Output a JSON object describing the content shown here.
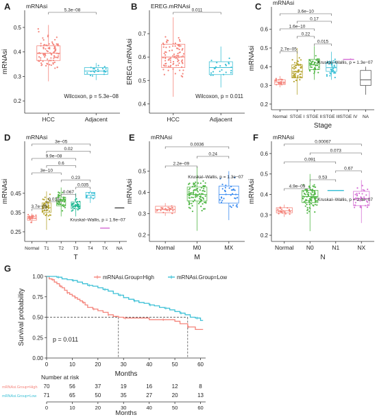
{
  "panel_letters": [
    "A",
    "B",
    "C",
    "D",
    "E",
    "F",
    "G"
  ],
  "chart_data": [
    {
      "panel": "A",
      "type": "box",
      "title": "mRNAsi",
      "ylabel": "mRNAsi",
      "categories": [
        "HCC",
        "Adjacent"
      ],
      "colors": [
        "#f4837a",
        "#3cc0d6"
      ],
      "ylim": [
        0.15,
        0.57
      ],
      "yticks": [
        "0.2",
        "0.3",
        "0.4",
        "0.5"
      ],
      "ytick_values": [
        0.2,
        0.3,
        0.4,
        0.5
      ],
      "boxes": [
        {
          "q1": 0.365,
          "median": 0.395,
          "q3": 0.425,
          "lo": 0.28,
          "hi": 0.51,
          "n": 90,
          "spread": 0.07
        },
        {
          "q1": 0.308,
          "median": 0.322,
          "q3": 0.336,
          "lo": 0.285,
          "hi": 0.355,
          "n": 22,
          "spread": 0.02
        }
      ],
      "comparisons": [
        {
          "from": 0,
          "to": 1,
          "label": "5.3e−08"
        }
      ],
      "annotation": "Wilcoxon, p = 5.3e−08"
    },
    {
      "panel": "B",
      "type": "box",
      "title": "EREG.mRNAsi",
      "ylabel": "EREG.mRNAsi",
      "categories": [
        "HCC",
        "Adjacent"
      ],
      "colors": [
        "#f4837a",
        "#3cc0d6"
      ],
      "ylim": [
        0.36,
        0.8
      ],
      "yticks": [
        "0.4",
        "0.5",
        "0.6",
        "0.7"
      ],
      "ytick_values": [
        0.4,
        0.5,
        0.6,
        0.7
      ],
      "boxes": [
        {
          "q1": 0.555,
          "median": 0.6,
          "q3": 0.655,
          "lo": 0.43,
          "hi": 0.77,
          "n": 90,
          "spread": 0.08
        },
        {
          "q1": 0.525,
          "median": 0.555,
          "q3": 0.58,
          "lo": 0.47,
          "hi": 0.645,
          "n": 22,
          "spread": 0.04
        }
      ],
      "comparisons": [
        {
          "from": 0,
          "to": 1,
          "label": "0.011"
        }
      ],
      "annotation": "Wilcoxon, p = 0.011"
    },
    {
      "panel": "C",
      "type": "box",
      "title": "mRNAsi",
      "ylabel": "mRNAsi",
      "xlabel": "Stage",
      "categories": [
        "Normal",
        "STGE I",
        "STGE II",
        "STGE III",
        "STGE IV",
        "NA"
      ],
      "colors": [
        "#f4837a",
        "#b6a532",
        "#53b748",
        "#3cc0d6",
        "#d673d6",
        "#555555"
      ],
      "ylim": [
        0.17,
        0.72
      ],
      "yticks": [
        "0.2",
        "0.3",
        "0.4",
        "0.5",
        "0.6"
      ],
      "ytick_values": [
        0.2,
        0.3,
        0.4,
        0.5,
        0.6
      ],
      "boxes": [
        {
          "q1": 0.305,
          "median": 0.318,
          "q3": 0.33,
          "lo": 0.29,
          "hi": 0.35,
          "n": 22,
          "spread": 0.02
        },
        {
          "q1": 0.34,
          "median": 0.375,
          "q3": 0.41,
          "lo": 0.25,
          "hi": 0.5,
          "n": 55,
          "spread": 0.06
        },
        {
          "q1": 0.385,
          "median": 0.41,
          "q3": 0.44,
          "lo": 0.33,
          "hi": 0.51,
          "n": 45,
          "spread": 0.04
        },
        {
          "q1": 0.375,
          "median": 0.395,
          "q3": 0.42,
          "lo": 0.33,
          "hi": 0.48,
          "n": 35,
          "spread": 0.04
        },
        {
          "q1": 0.44,
          "median": 0.44,
          "q3": 0.44,
          "lo": 0.44,
          "hi": 0.44,
          "n": 1,
          "spread": 0.0
        },
        {
          "q1": 0.3,
          "median": 0.33,
          "q3": 0.38,
          "lo": 0.25,
          "hi": 0.4,
          "n": 0,
          "spread": 0.0
        }
      ],
      "comparisons": [
        {
          "from": 0,
          "to": 3,
          "label": "3.6e−10"
        },
        {
          "from": 1,
          "to": 3,
          "label": "0.17"
        },
        {
          "from": 0,
          "to": 2,
          "label": "1.6e−10"
        },
        {
          "from": 1,
          "to": 2,
          "label": "0.22"
        },
        {
          "from": 2,
          "to": 3,
          "label": "0.015"
        },
        {
          "from": 0,
          "to": 1,
          "label": "2.7e−05"
        }
      ],
      "annotation": "Kruskal–Wallis, p = 1.3e−07"
    },
    {
      "panel": "D",
      "type": "box",
      "title": "mRNAsi",
      "ylabel": "mRNAsi",
      "xlabel": "T",
      "categories": [
        "Normal",
        "T1",
        "T2",
        "T3",
        "T4",
        "TX",
        "NA"
      ],
      "colors": [
        "#f4837a",
        "#b6a532",
        "#53b748",
        "#23b994",
        "#3cc0d6",
        "#d673d6",
        "#555555"
      ],
      "ylim": [
        0.2,
        0.72
      ],
      "yticks": [
        "0.25",
        "0.35",
        "0.45"
      ],
      "ytick_values": [
        0.25,
        0.35,
        0.45
      ],
      "boxes": [
        {
          "q1": 0.31,
          "median": 0.32,
          "q3": 0.33,
          "lo": 0.295,
          "hi": 0.345,
          "n": 22,
          "spread": 0.015
        },
        {
          "q1": 0.35,
          "median": 0.375,
          "q3": 0.4,
          "lo": 0.26,
          "hi": 0.46,
          "n": 50,
          "spread": 0.05
        },
        {
          "q1": 0.385,
          "median": 0.41,
          "q3": 0.43,
          "lo": 0.33,
          "hi": 0.48,
          "n": 40,
          "spread": 0.04
        },
        {
          "q1": 0.37,
          "median": 0.385,
          "q3": 0.405,
          "lo": 0.33,
          "hi": 0.45,
          "n": 35,
          "spread": 0.03
        },
        {
          "q1": 0.425,
          "median": 0.44,
          "q3": 0.455,
          "lo": 0.4,
          "hi": 0.465,
          "n": 8,
          "spread": 0.02
        },
        {
          "q1": 0.27,
          "median": 0.27,
          "q3": 0.27,
          "lo": 0.27,
          "hi": 0.27,
          "n": 0,
          "spread": 0.0
        },
        {
          "q1": 0.375,
          "median": 0.375,
          "q3": 0.375,
          "lo": 0.375,
          "hi": 0.375,
          "n": 0,
          "spread": 0.0
        }
      ],
      "comparisons": [
        {
          "from": 0,
          "to": 4,
          "label": "3e−05"
        },
        {
          "from": 1,
          "to": 4,
          "label": "0.02"
        },
        {
          "from": 0,
          "to": 3,
          "label": "9.9e−08"
        },
        {
          "from": 1,
          "to": 3,
          "label": "0.6"
        },
        {
          "from": 0,
          "to": 2,
          "label": "3e−10"
        },
        {
          "from": 2,
          "to": 4,
          "label": "0.23"
        },
        {
          "from": 3,
          "to": 4,
          "label": "0.035"
        },
        {
          "from": 2,
          "to": 3,
          "label": "0.067"
        },
        {
          "from": 1,
          "to": 2,
          "label": "0.018"
        },
        {
          "from": 0,
          "to": 1,
          "label": "3.7e−05"
        }
      ],
      "annotation": "Kruskal–Wallis, p = 1.9e−07"
    },
    {
      "panel": "E",
      "type": "box",
      "title": "mRNAsi",
      "ylabel": "mRNAsi",
      "xlabel": "M",
      "categories": [
        "Normal",
        "M0",
        "MX"
      ],
      "colors": [
        "#f4837a",
        "#53b748",
        "#3c8cf0"
      ],
      "ylim": [
        0.17,
        0.64
      ],
      "yticks": [
        "0.2",
        "0.3",
        "0.4",
        "0.5"
      ],
      "ytick_values": [
        0.2,
        0.3,
        0.4,
        0.5
      ],
      "boxes": [
        {
          "q1": 0.305,
          "median": 0.32,
          "q3": 0.335,
          "lo": 0.29,
          "hi": 0.35,
          "n": 22,
          "spread": 0.02
        },
        {
          "q1": 0.36,
          "median": 0.39,
          "q3": 0.425,
          "lo": 0.22,
          "hi": 0.52,
          "n": 90,
          "spread": 0.06
        },
        {
          "q1": 0.35,
          "median": 0.39,
          "q3": 0.43,
          "lo": 0.27,
          "hi": 0.5,
          "n": 35,
          "spread": 0.06
        }
      ],
      "comparisons": [
        {
          "from": 0,
          "to": 2,
          "label": "0.0036"
        },
        {
          "from": 1,
          "to": 2,
          "label": "0.24"
        },
        {
          "from": 0,
          "to": 1,
          "label": "2.2e−09"
        }
      ],
      "annotation": "Kruskal–Wallis, p = 1.3e−07"
    },
    {
      "panel": "F",
      "type": "box",
      "title": "mRNAsi",
      "ylabel": "mRNAsi",
      "xlabel": "N",
      "categories": [
        "Normal",
        "N0",
        "N1",
        "NX"
      ],
      "colors": [
        "#f4837a",
        "#53b748",
        "#3cc0d6",
        "#d673d6"
      ],
      "ylim": [
        0.17,
        0.66
      ],
      "yticks": [
        "0.2",
        "0.3",
        "0.4",
        "0.5",
        "0.6"
      ],
      "ytick_values": [
        0.2,
        0.3,
        0.4,
        0.5,
        0.6
      ],
      "boxes": [
        {
          "q1": 0.31,
          "median": 0.32,
          "q3": 0.335,
          "lo": 0.29,
          "hi": 0.35,
          "n": 22,
          "spread": 0.02
        },
        {
          "q1": 0.36,
          "median": 0.39,
          "q3": 0.42,
          "lo": 0.22,
          "hi": 0.5,
          "n": 90,
          "spread": 0.06
        },
        {
          "q1": 0.42,
          "median": 0.42,
          "q3": 0.42,
          "lo": 0.42,
          "hi": 0.42,
          "n": 0,
          "spread": 0.0
        },
        {
          "q1": 0.345,
          "median": 0.38,
          "q3": 0.415,
          "lo": 0.26,
          "hi": 0.47,
          "n": 35,
          "spread": 0.05
        }
      ],
      "comparisons": [
        {
          "from": 0,
          "to": 3,
          "label": "0.00067"
        },
        {
          "from": 1,
          "to": 3,
          "label": "0.073"
        },
        {
          "from": 0,
          "to": 2,
          "label": "0.091"
        },
        {
          "from": 2,
          "to": 3,
          "label": "0.67"
        },
        {
          "from": 1,
          "to": 2,
          "label": "0.53"
        },
        {
          "from": 0,
          "to": 1,
          "label": "4.9e−09"
        }
      ],
      "annotation": "Kruskal–Wallis, p = 2.4e−07"
    },
    {
      "panel": "G",
      "type": "line",
      "ylabel": "Survival probability",
      "xlabel": "Months",
      "xlim": [
        0,
        62
      ],
      "ylim": [
        0,
        1.0
      ],
      "xticks": [
        "0",
        "10",
        "20",
        "30",
        "40",
        "50",
        "60"
      ],
      "xtick_values": [
        0,
        10,
        20,
        30,
        40,
        50,
        60
      ],
      "yticks": [
        "0.00",
        "0.25",
        "0.50",
        "0.75",
        "1.00"
      ],
      "ytick_values": [
        0,
        0.25,
        0.5,
        0.75,
        1.0
      ],
      "legend": [
        "mRNAsi.Group=High",
        "mRNAsi.Group=Low"
      ],
      "annotation": "p = 0.011",
      "series": [
        {
          "name": "mRNAsi.Group=High",
          "color": "#f4837a",
          "x": [
            0,
            1,
            2,
            3,
            4,
            5,
            6,
            7,
            8,
            9,
            10,
            11,
            12,
            13,
            14,
            15,
            16,
            18,
            20,
            22,
            24,
            26,
            28,
            30,
            35,
            40,
            45,
            50,
            52,
            55,
            58,
            61
          ],
          "y": [
            1.0,
            0.97,
            0.96,
            0.93,
            0.91,
            0.88,
            0.86,
            0.83,
            0.8,
            0.78,
            0.76,
            0.74,
            0.72,
            0.7,
            0.68,
            0.65,
            0.62,
            0.6,
            0.58,
            0.56,
            0.53,
            0.51,
            0.5,
            0.49,
            0.49,
            0.47,
            0.47,
            0.45,
            0.42,
            0.38,
            0.35,
            0.35
          ]
        },
        {
          "name": "mRNAsi.Group=Low",
          "color": "#3cc0d6",
          "x": [
            0,
            2,
            4,
            6,
            8,
            10,
            12,
            14,
            16,
            18,
            20,
            22,
            24,
            26,
            28,
            30,
            32,
            34,
            36,
            38,
            40,
            42,
            44,
            46,
            48,
            50,
            52,
            54,
            56,
            58,
            60,
            61
          ],
          "y": [
            1.0,
            1.0,
            0.99,
            0.97,
            0.96,
            0.95,
            0.93,
            0.91,
            0.89,
            0.88,
            0.86,
            0.84,
            0.82,
            0.79,
            0.77,
            0.74,
            0.72,
            0.7,
            0.68,
            0.67,
            0.65,
            0.64,
            0.62,
            0.61,
            0.59,
            0.57,
            0.55,
            0.53,
            0.5,
            0.49,
            0.46,
            0.46
          ]
        }
      ],
      "median_marks": [
        28,
        55
      ],
      "risk_table": {
        "title": "Number at risk",
        "xlabel": "Months",
        "rows": [
          {
            "label": "mRNAsi.Group=High",
            "color": "#f4837a",
            "values": [
              "70",
              "56",
              "37",
              "19",
              "16",
              "12",
              "8"
            ]
          },
          {
            "label": "mRNAsi.Group=Low",
            "color": "#3cc0d6",
            "values": [
              "71",
              "65",
              "50",
              "35",
              "27",
              "20",
              "13"
            ]
          }
        ]
      }
    }
  ]
}
